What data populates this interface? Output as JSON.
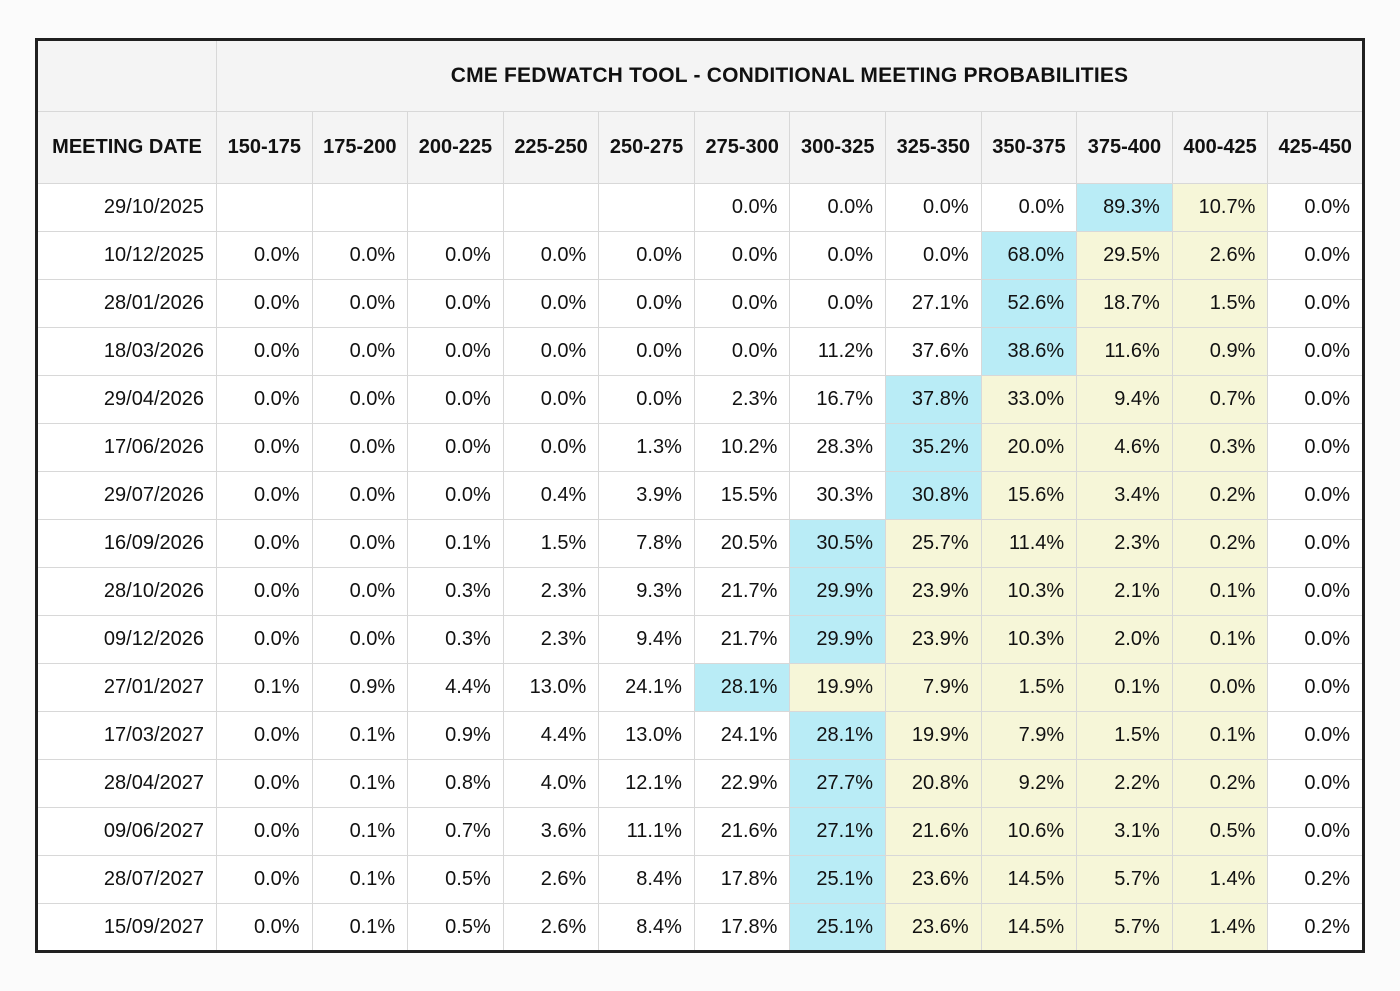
{
  "colors": {
    "highlight_max": "#b9ecf6",
    "highlight_tail": "#f6f6d8",
    "header_bg": "#f4f4f4",
    "grid_line": "#d8d8d8",
    "outer_border": "#202020"
  },
  "chart_data": {
    "type": "table",
    "title": "CME FEDWATCH TOOL - CONDITIONAL MEETING PROBABILITIES",
    "row_header_label": "MEETING DATE",
    "columns": [
      "150-175",
      "175-200",
      "200-225",
      "225-250",
      "250-275",
      "275-300",
      "300-325",
      "325-350",
      "350-375",
      "375-400",
      "400-425",
      "425-450"
    ],
    "rows": [
      {
        "date": "29/10/2025",
        "values": [
          "",
          "",
          "",
          "",
          "",
          "0.0%",
          "0.0%",
          "0.0%",
          "0.0%",
          "89.3%",
          "10.7%",
          "0.0%"
        ],
        "styles": [
          "",
          "",
          "",
          "",
          "",
          "",
          "",
          "",
          "",
          "c",
          "y",
          ""
        ]
      },
      {
        "date": "10/12/2025",
        "values": [
          "0.0%",
          "0.0%",
          "0.0%",
          "0.0%",
          "0.0%",
          "0.0%",
          "0.0%",
          "0.0%",
          "68.0%",
          "29.5%",
          "2.6%",
          "0.0%"
        ],
        "styles": [
          "",
          "",
          "",
          "",
          "",
          "",
          "",
          "",
          "c",
          "y",
          "y",
          ""
        ]
      },
      {
        "date": "28/01/2026",
        "values": [
          "0.0%",
          "0.0%",
          "0.0%",
          "0.0%",
          "0.0%",
          "0.0%",
          "0.0%",
          "27.1%",
          "52.6%",
          "18.7%",
          "1.5%",
          "0.0%"
        ],
        "styles": [
          "",
          "",
          "",
          "",
          "",
          "",
          "",
          "",
          "c",
          "y",
          "y",
          ""
        ]
      },
      {
        "date": "18/03/2026",
        "values": [
          "0.0%",
          "0.0%",
          "0.0%",
          "0.0%",
          "0.0%",
          "0.0%",
          "11.2%",
          "37.6%",
          "38.6%",
          "11.6%",
          "0.9%",
          "0.0%"
        ],
        "styles": [
          "",
          "",
          "",
          "",
          "",
          "",
          "",
          "",
          "c",
          "y",
          "y",
          ""
        ]
      },
      {
        "date": "29/04/2026",
        "values": [
          "0.0%",
          "0.0%",
          "0.0%",
          "0.0%",
          "0.0%",
          "2.3%",
          "16.7%",
          "37.8%",
          "33.0%",
          "9.4%",
          "0.7%",
          "0.0%"
        ],
        "styles": [
          "",
          "",
          "",
          "",
          "",
          "",
          "",
          "c",
          "y",
          "y",
          "y",
          ""
        ]
      },
      {
        "date": "17/06/2026",
        "values": [
          "0.0%",
          "0.0%",
          "0.0%",
          "0.0%",
          "1.3%",
          "10.2%",
          "28.3%",
          "35.2%",
          "20.0%",
          "4.6%",
          "0.3%",
          "0.0%"
        ],
        "styles": [
          "",
          "",
          "",
          "",
          "",
          "",
          "",
          "c",
          "y",
          "y",
          "y",
          ""
        ]
      },
      {
        "date": "29/07/2026",
        "values": [
          "0.0%",
          "0.0%",
          "0.0%",
          "0.4%",
          "3.9%",
          "15.5%",
          "30.3%",
          "30.8%",
          "15.6%",
          "3.4%",
          "0.2%",
          "0.0%"
        ],
        "styles": [
          "",
          "",
          "",
          "",
          "",
          "",
          "",
          "c",
          "y",
          "y",
          "y",
          ""
        ]
      },
      {
        "date": "16/09/2026",
        "values": [
          "0.0%",
          "0.0%",
          "0.1%",
          "1.5%",
          "7.8%",
          "20.5%",
          "30.5%",
          "25.7%",
          "11.4%",
          "2.3%",
          "0.2%",
          "0.0%"
        ],
        "styles": [
          "",
          "",
          "",
          "",
          "",
          "",
          "c",
          "y",
          "y",
          "y",
          "y",
          ""
        ]
      },
      {
        "date": "28/10/2026",
        "values": [
          "0.0%",
          "0.0%",
          "0.3%",
          "2.3%",
          "9.3%",
          "21.7%",
          "29.9%",
          "23.9%",
          "10.3%",
          "2.1%",
          "0.1%",
          "0.0%"
        ],
        "styles": [
          "",
          "",
          "",
          "",
          "",
          "",
          "c",
          "y",
          "y",
          "y",
          "y",
          ""
        ]
      },
      {
        "date": "09/12/2026",
        "values": [
          "0.0%",
          "0.0%",
          "0.3%",
          "2.3%",
          "9.4%",
          "21.7%",
          "29.9%",
          "23.9%",
          "10.3%",
          "2.0%",
          "0.1%",
          "0.0%"
        ],
        "styles": [
          "",
          "",
          "",
          "",
          "",
          "",
          "c",
          "y",
          "y",
          "y",
          "y",
          ""
        ]
      },
      {
        "date": "27/01/2027",
        "values": [
          "0.1%",
          "0.9%",
          "4.4%",
          "13.0%",
          "24.1%",
          "28.1%",
          "19.9%",
          "7.9%",
          "1.5%",
          "0.1%",
          "0.0%",
          "0.0%"
        ],
        "styles": [
          "",
          "",
          "",
          "",
          "",
          "c",
          "y",
          "y",
          "y",
          "y",
          "y",
          ""
        ]
      },
      {
        "date": "17/03/2027",
        "values": [
          "0.0%",
          "0.1%",
          "0.9%",
          "4.4%",
          "13.0%",
          "24.1%",
          "28.1%",
          "19.9%",
          "7.9%",
          "1.5%",
          "0.1%",
          "0.0%"
        ],
        "styles": [
          "",
          "",
          "",
          "",
          "",
          "",
          "c",
          "y",
          "y",
          "y",
          "y",
          ""
        ]
      },
      {
        "date": "28/04/2027",
        "values": [
          "0.0%",
          "0.1%",
          "0.8%",
          "4.0%",
          "12.1%",
          "22.9%",
          "27.7%",
          "20.8%",
          "9.2%",
          "2.2%",
          "0.2%",
          "0.0%"
        ],
        "styles": [
          "",
          "",
          "",
          "",
          "",
          "",
          "c",
          "y",
          "y",
          "y",
          "y",
          ""
        ]
      },
      {
        "date": "09/06/2027",
        "values": [
          "0.0%",
          "0.1%",
          "0.7%",
          "3.6%",
          "11.1%",
          "21.6%",
          "27.1%",
          "21.6%",
          "10.6%",
          "3.1%",
          "0.5%",
          "0.0%"
        ],
        "styles": [
          "",
          "",
          "",
          "",
          "",
          "",
          "c",
          "y",
          "y",
          "y",
          "y",
          ""
        ]
      },
      {
        "date": "28/07/2027",
        "values": [
          "0.0%",
          "0.1%",
          "0.5%",
          "2.6%",
          "8.4%",
          "17.8%",
          "25.1%",
          "23.6%",
          "14.5%",
          "5.7%",
          "1.4%",
          "0.2%"
        ],
        "styles": [
          "",
          "",
          "",
          "",
          "",
          "",
          "c",
          "y",
          "y",
          "y",
          "y",
          ""
        ]
      },
      {
        "date": "15/09/2027",
        "values": [
          "0.0%",
          "0.1%",
          "0.5%",
          "2.6%",
          "8.4%",
          "17.8%",
          "25.1%",
          "23.6%",
          "14.5%",
          "5.7%",
          "1.4%",
          "0.2%"
        ],
        "styles": [
          "",
          "",
          "",
          "",
          "",
          "",
          "c",
          "y",
          "y",
          "y",
          "y",
          ""
        ]
      }
    ]
  }
}
